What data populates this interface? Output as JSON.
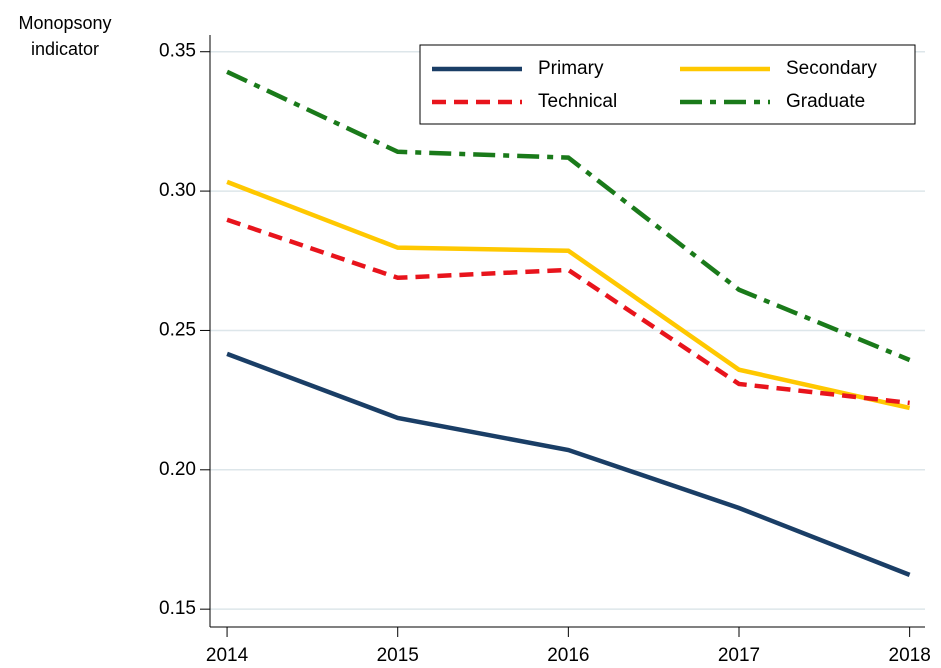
{
  "chart_data": {
    "type": "line",
    "ylabel": "Monopsony indicator",
    "x": [
      2014,
      2015,
      2016,
      2017,
      2018
    ],
    "series": [
      {
        "name": "Primary",
        "color": "#1a3e66",
        "dash": "solid",
        "values": [
          0.2416,
          0.2186,
          0.2071,
          0.1863,
          0.1623
        ]
      },
      {
        "name": "Secondary",
        "color": "#ffc800",
        "dash": "solid",
        "values": [
          0.3033,
          0.2797,
          0.2786,
          0.2359,
          0.2222
        ]
      },
      {
        "name": "Technical",
        "color": "#e8141c",
        "dash": "dash",
        "values": [
          0.2897,
          0.2689,
          0.2717,
          0.2308,
          0.224
        ]
      },
      {
        "name": "Graduate",
        "color": "#1a7a1a",
        "dash": "dashdot",
        "values": [
          0.3428,
          0.3141,
          0.312,
          0.2646,
          0.2394
        ]
      }
    ],
    "xlim": [
      2013.9,
      2018.09
    ],
    "xticks": [
      2014,
      2015,
      2016,
      2017,
      2018
    ],
    "ylim": [
      0.1436,
      0.356
    ],
    "yticks": [
      {
        "value": 0.15,
        "label": "0.15"
      },
      {
        "value": 0.2,
        "label": "0.20"
      },
      {
        "value": 0.25,
        "label": "0.25"
      },
      {
        "value": 0.3,
        "label": "0.30"
      },
      {
        "value": 0.35,
        "label": "0.35"
      }
    ],
    "grid": true,
    "legend": "top-right"
  }
}
